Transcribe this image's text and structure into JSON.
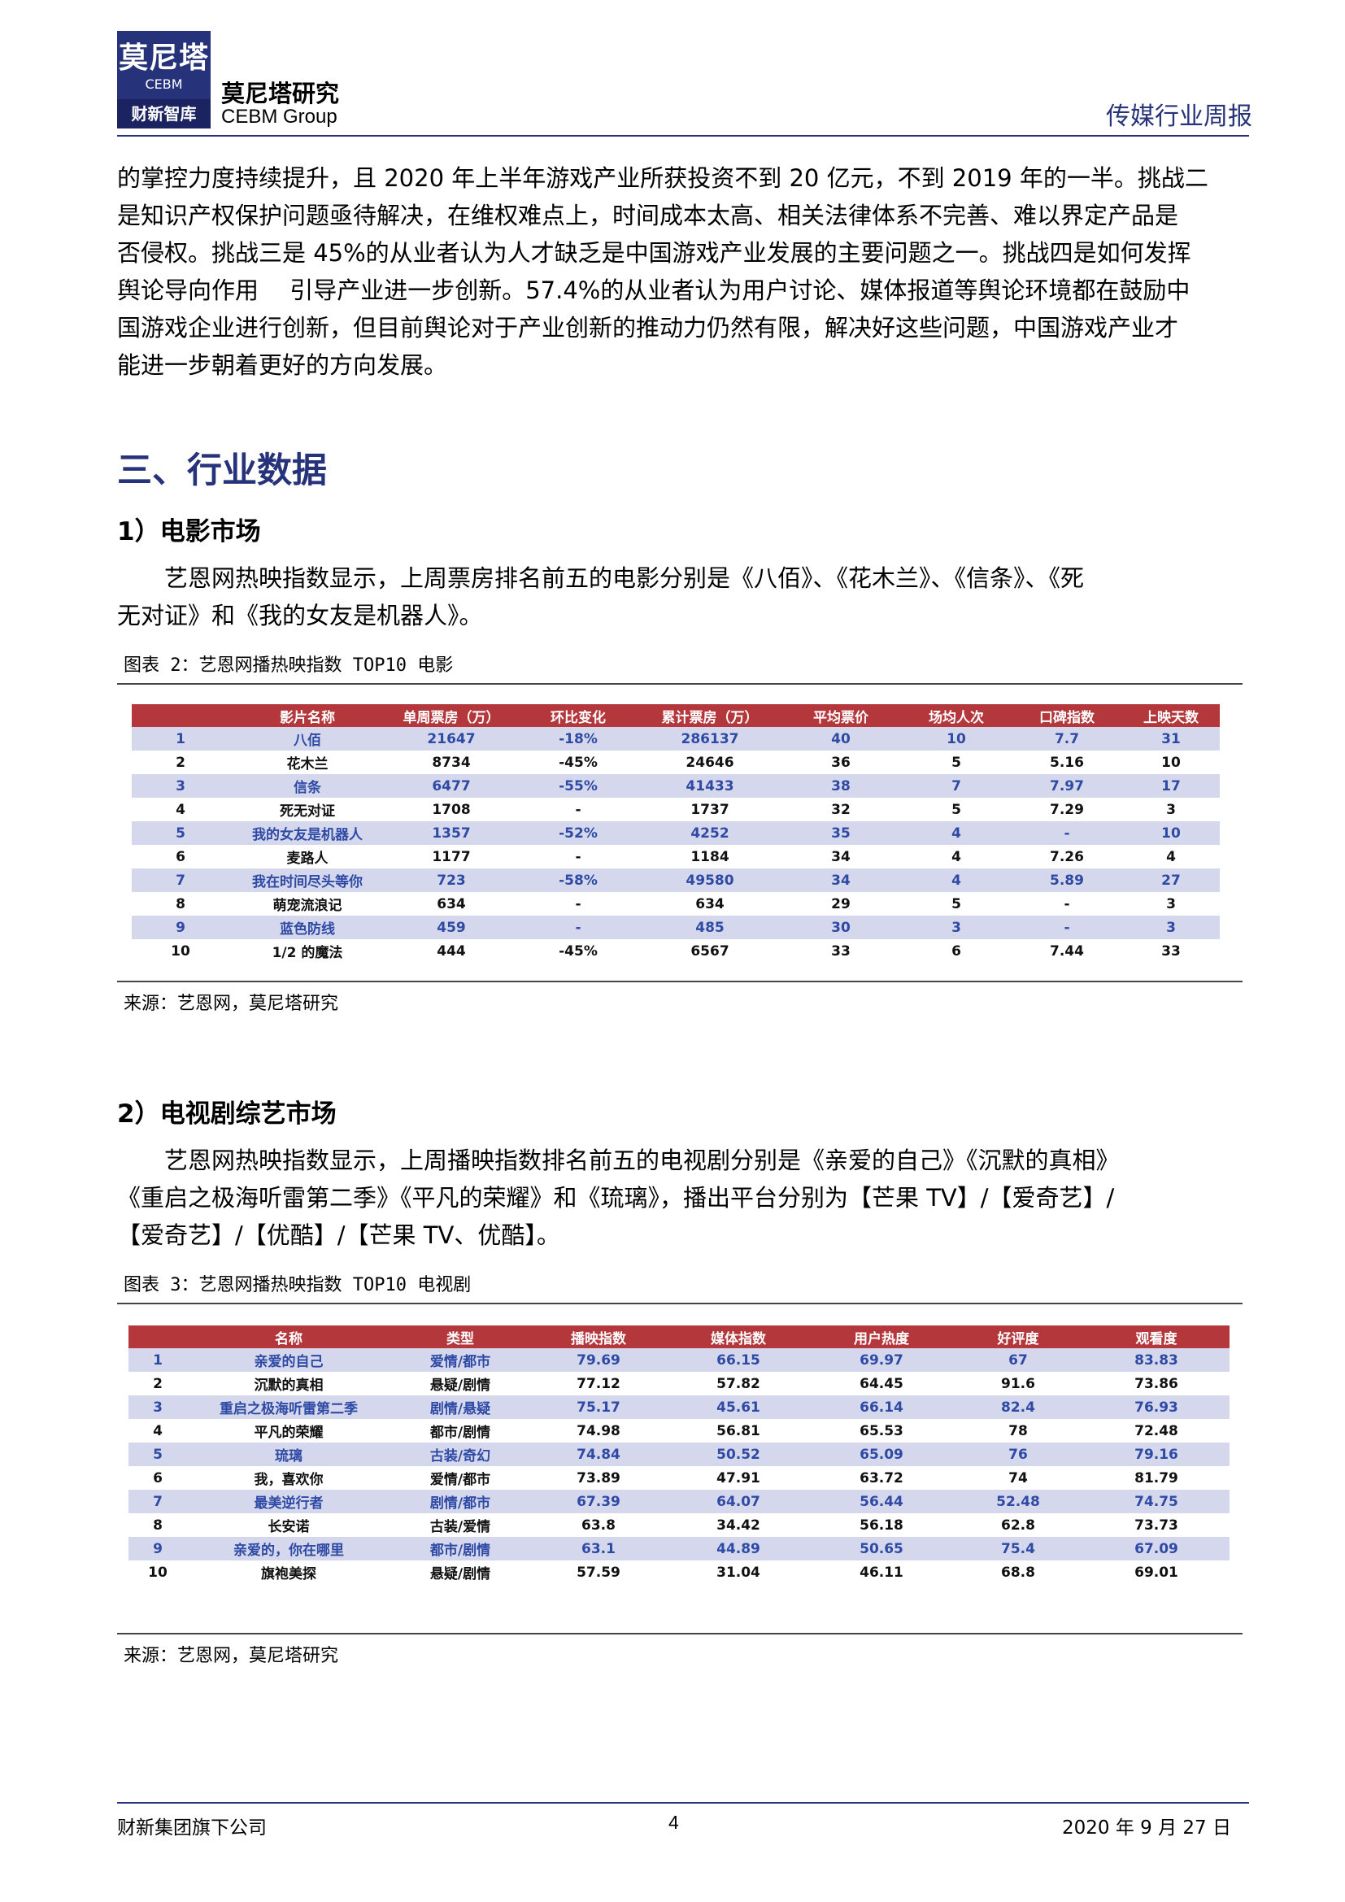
{
  "header": {
    "logo_cn": "莫尼塔",
    "logo_en": "CEBM",
    "logo_bar": "财新智库",
    "company_cn": "莫尼塔研究",
    "company_en": "CEBM Group",
    "report_type": "传媒行业周报"
  },
  "intro_lines": [
    "的掌控力度持续提升，且 2020 年上半年游戏产业所获投资不到 20 亿元，不到 2019 年的一半。挑战二",
    "是知识产权保护问题亟待解决，在维权难点上，时间成本太高、相关法律体系不完善、难以界定产品是",
    "否侵权。挑战三是 45%的从业者认为人才缺乏是中国游戏产业发展的主要问题之一。挑战四是如何发挥",
    "舆论导向作用 　引导产业进一步创新。57.4%的从业者认为用户讨论、媒体报道等舆论环境都在鼓励中",
    "国游戏企业进行创新，但目前舆论对于产业创新的推动力仍然有限，解决好这些问题，中国游戏产业才",
    "能进一步朝着更好的方向发展。"
  ],
  "section_title": "三、行业数据",
  "movie": {
    "heading": "1）电影市场",
    "para_lines": [
      "艺恩网热映指数显示，上周票房排名前五的电影分别是《八佰》、《花木兰》、《信条》、《死",
      "无对证》和《我的女友是机器人》。"
    ],
    "figure_title": "图表 2：艺恩网播热映指数 TOP10 电影",
    "source": "来源：艺恩网，莫尼塔研究",
    "table": {
      "columns": [
        "",
        "影片名称",
        "单周票房（万）",
        "环比变化",
        "累计票房（万）",
        "平均票价",
        "场均人次",
        "口碑指数",
        "上映天数"
      ],
      "rows": [
        [
          "1",
          "八佰",
          "21647",
          "-18%",
          "286137",
          "40",
          "10",
          "7.7",
          "31"
        ],
        [
          "2",
          "花木兰",
          "8734",
          "-45%",
          "24646",
          "36",
          "5",
          "5.16",
          "10"
        ],
        [
          "3",
          "信条",
          "6477",
          "-55%",
          "41433",
          "38",
          "7",
          "7.97",
          "17"
        ],
        [
          "4",
          "死无对证",
          "1708",
          "-",
          "1737",
          "32",
          "5",
          "7.29",
          "3"
        ],
        [
          "5",
          "我的女友是机器人",
          "1357",
          "-52%",
          "4252",
          "35",
          "4",
          "-",
          "10"
        ],
        [
          "6",
          "麦路人",
          "1177",
          "-",
          "1184",
          "34",
          "4",
          "7.26",
          "4"
        ],
        [
          "7",
          "我在时间尽头等你",
          "723",
          "-58%",
          "49580",
          "34",
          "4",
          "5.89",
          "27"
        ],
        [
          "8",
          "萌宠流浪记",
          "634",
          "-",
          "634",
          "29",
          "5",
          "-",
          "3"
        ],
        [
          "9",
          "蓝色防线",
          "459",
          "-",
          "485",
          "30",
          "3",
          "-",
          "3"
        ],
        [
          "10",
          "1/2 的魔法",
          "444",
          "-45%",
          "6567",
          "33",
          "6",
          "7.44",
          "33"
        ]
      ]
    }
  },
  "tv": {
    "heading": "2）电视剧综艺市场",
    "para_lines": [
      "艺恩网热映指数显示，上周播映指数排名前五的电视剧分别是《亲爱的自己》《沉默的真相》",
      "《重启之极海听雷第二季》《平凡的荣耀》和《琉璃》，播出平台分别为【芒果 TV】/【爱奇艺】/",
      "【爱奇艺】/【优酷】/【芒果 TV、优酷】。"
    ],
    "figure_title": "图表 3：艺恩网播热映指数 TOP10 电视剧",
    "source": "来源：艺恩网，莫尼塔研究",
    "table": {
      "columns": [
        "",
        "名称",
        "类型",
        "播映指数",
        "媒体指数",
        "用户热度",
        "好评度",
        "观看度"
      ],
      "rows": [
        [
          "1",
          "亲爱的自己",
          "爱情/都市",
          "79.69",
          "66.15",
          "69.97",
          "67",
          "83.83"
        ],
        [
          "2",
          "沉默的真相",
          "悬疑/剧情",
          "77.12",
          "57.82",
          "64.45",
          "91.6",
          "73.86"
        ],
        [
          "3",
          "重启之极海听雷第二季",
          "剧情/悬疑",
          "75.17",
          "45.61",
          "66.14",
          "82.4",
          "76.93"
        ],
        [
          "4",
          "平凡的荣耀",
          "都市/剧情",
          "74.98",
          "56.81",
          "65.53",
          "78",
          "72.48"
        ],
        [
          "5",
          "琉璃",
          "古装/奇幻",
          "74.84",
          "50.52",
          "65.09",
          "76",
          "79.16"
        ],
        [
          "6",
          "我，喜欢你",
          "爱情/都市",
          "73.89",
          "47.91",
          "63.72",
          "74",
          "81.79"
        ],
        [
          "7",
          "最美逆行者",
          "剧情/都市",
          "67.39",
          "64.07",
          "56.44",
          "52.48",
          "74.75"
        ],
        [
          "8",
          "长安诺",
          "古装/爱情",
          "63.8",
          "34.42",
          "56.18",
          "62.8",
          "73.73"
        ],
        [
          "9",
          "亲爱的，你在哪里",
          "都市/剧情",
          "63.1",
          "44.89",
          "50.65",
          "75.4",
          "67.09"
        ],
        [
          "10",
          "旗袍美探",
          "悬疑/剧情",
          "57.59",
          "31.04",
          "46.11",
          "68.8",
          "69.01"
        ]
      ]
    }
  },
  "footer": {
    "left": "财新集团旗下公司",
    "page": "4",
    "date": "2020 年 9 月 27 日"
  }
}
